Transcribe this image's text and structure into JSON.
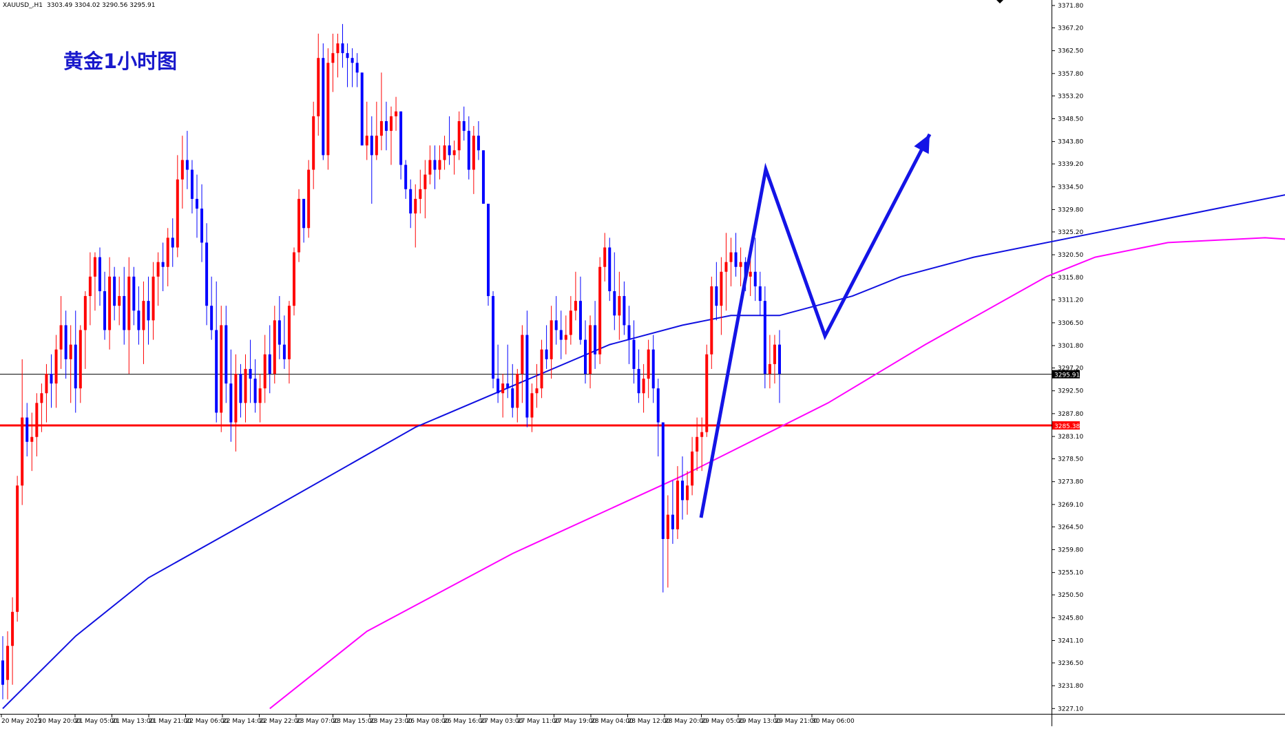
{
  "header": {
    "symbol": "XAUUSD_,H1",
    "ohlc": "3303.49 3304.02 3290.56 3295.91"
  },
  "chart_data": {
    "type": "candlestick",
    "title": "黄金1小时图",
    "ylim": [
      3227.0,
      3371.8
    ],
    "y_ticks": [
      "3371.80",
      "3367.20",
      "3362.50",
      "3357.80",
      "3353.20",
      "3348.50",
      "3343.80",
      "3339.20",
      "3334.50",
      "3329.80",
      "3325.20",
      "3320.50",
      "3315.80",
      "3311.20",
      "3306.50",
      "3301.80",
      "3297.20",
      "3292.50",
      "3287.80",
      "3283.10",
      "3278.50",
      "3273.80",
      "3269.10",
      "3264.50",
      "3259.80",
      "3255.10",
      "3250.50",
      "3245.80",
      "3241.10",
      "3236.50",
      "3231.80",
      "3227.10"
    ],
    "x_ticks": [
      "20 May 2025",
      "20 May 20:00",
      "21 May 05:00",
      "21 May 13:00",
      "21 May 21:00",
      "22 May 06:00",
      "22 May 14:00",
      "22 May 22:00",
      "23 May 07:00",
      "23 May 15:00",
      "23 May 23:00",
      "26 May 08:00",
      "26 May 16:00",
      "27 May 03:00",
      "27 May 11:00",
      "27 May 19:00",
      "28 May 04:00",
      "28 May 12:00",
      "28 May 20:00",
      "29 May 05:00",
      "29 May 13:00",
      "29 May 21:00",
      "30 May 06:00"
    ],
    "candles": [
      [
        3237,
        3242,
        3229,
        3232
      ],
      [
        3233,
        3243,
        3229,
        3240
      ],
      [
        3240,
        3250,
        3232,
        3247
      ],
      [
        3247,
        3275,
        3245,
        3273
      ],
      [
        3273,
        3299,
        3269,
        3287
      ],
      [
        3287,
        3290,
        3279,
        3282
      ],
      [
        3282,
        3288,
        3276,
        3283
      ],
      [
        3283,
        3292,
        3279,
        3290
      ],
      [
        3290,
        3294,
        3284,
        3292
      ],
      [
        3292,
        3298,
        3286,
        3296
      ],
      [
        3296,
        3300,
        3289,
        3294
      ],
      [
        3294,
        3304,
        3289,
        3301
      ],
      [
        3301,
        3312,
        3297,
        3306
      ],
      [
        3306,
        3309,
        3295,
        3299
      ],
      [
        3299,
        3306,
        3290,
        3302
      ],
      [
        3302,
        3309,
        3288,
        3293
      ],
      [
        3293,
        3306,
        3290,
        3305
      ],
      [
        3305,
        3313,
        3297,
        3312
      ],
      [
        3312,
        3321,
        3306,
        3316
      ],
      [
        3316,
        3321,
        3309,
        3320
      ],
      [
        3320,
        3322,
        3310,
        3313
      ],
      [
        3313,
        3317,
        3303,
        3305
      ],
      [
        3305,
        3320,
        3301,
        3316
      ],
      [
        3316,
        3318,
        3307,
        3310
      ],
      [
        3310,
        3316,
        3306,
        3312
      ],
      [
        3312,
        3318,
        3302,
        3305
      ],
      [
        3305,
        3320,
        3296,
        3316
      ],
      [
        3316,
        3318,
        3306,
        3309
      ],
      [
        3309,
        3314,
        3302,
        3305
      ],
      [
        3305,
        3315,
        3298,
        3311
      ],
      [
        3311,
        3316,
        3302,
        3307
      ],
      [
        3307,
        3319,
        3303,
        3316
      ],
      [
        3316,
        3321,
        3310,
        3319
      ],
      [
        3319,
        3323,
        3313,
        3318
      ],
      [
        3318,
        3326,
        3314,
        3324
      ],
      [
        3324,
        3328,
        3318,
        3322
      ],
      [
        3322,
        3341,
        3320,
        3336
      ],
      [
        3336,
        3345,
        3330,
        3340
      ],
      [
        3340,
        3346,
        3334,
        3338
      ],
      [
        3338,
        3340,
        3329,
        3332
      ],
      [
        3332,
        3337,
        3324,
        3330
      ],
      [
        3330,
        3335,
        3319,
        3323
      ],
      [
        3323,
        3327,
        3306,
        3310
      ],
      [
        3310,
        3316,
        3303,
        3305
      ],
      [
        3305,
        3315,
        3286,
        3288
      ],
      [
        3288,
        3310,
        3284,
        3306
      ],
      [
        3306,
        3310,
        3290,
        3294
      ],
      [
        3294,
        3301,
        3282,
        3286
      ],
      [
        3286,
        3300,
        3280,
        3296
      ],
      [
        3296,
        3298,
        3287,
        3290
      ],
      [
        3290,
        3300,
        3286,
        3297
      ],
      [
        3297,
        3303,
        3290,
        3295
      ],
      [
        3295,
        3299,
        3288,
        3290
      ],
      [
        3290,
        3296,
        3286,
        3293
      ],
      [
        3293,
        3304,
        3290,
        3300
      ],
      [
        3300,
        3306,
        3292,
        3296
      ],
      [
        3296,
        3310,
        3294,
        3307
      ],
      [
        3307,
        3312,
        3299,
        3302
      ],
      [
        3302,
        3308,
        3297,
        3299
      ],
      [
        3299,
        3311,
        3294,
        3310
      ],
      [
        3310,
        3322,
        3308,
        3321
      ],
      [
        3321,
        3334,
        3319,
        3332
      ],
      [
        3332,
        3332,
        3323,
        3326
      ],
      [
        3326,
        3340,
        3324,
        3338
      ],
      [
        3338,
        3352,
        3334,
        3349
      ],
      [
        3349,
        3366,
        3345,
        3361
      ],
      [
        3361,
        3364,
        3340,
        3341
      ],
      [
        3341,
        3363,
        3338,
        3360
      ],
      [
        3360,
        3366,
        3354,
        3362
      ],
      [
        3362,
        3366,
        3357,
        3364
      ],
      [
        3364,
        3368,
        3359,
        3362
      ],
      [
        3362,
        3364,
        3355,
        3361
      ],
      [
        3361,
        3363,
        3355,
        3360
      ],
      [
        3360,
        3362,
        3355,
        3358
      ],
      [
        3358,
        3358,
        3343,
        3343
      ],
      [
        3343,
        3352,
        3340,
        3345
      ],
      [
        3345,
        3349,
        3331,
        3341
      ],
      [
        3341,
        3352,
        3340,
        3345
      ],
      [
        3345,
        3358,
        3342,
        3348
      ],
      [
        3348,
        3352,
        3342,
        3346
      ],
      [
        3346,
        3351,
        3339,
        3349
      ],
      [
        3349,
        3353,
        3346,
        3350
      ],
      [
        3350,
        3350,
        3336,
        3339
      ],
      [
        3339,
        3340,
        3332,
        3334
      ],
      [
        3334,
        3336,
        3326,
        3329
      ],
      [
        3329,
        3335,
        3322,
        3332
      ],
      [
        3332,
        3338,
        3329,
        3334
      ],
      [
        3334,
        3340,
        3328,
        3337
      ],
      [
        3337,
        3343,
        3335,
        3340
      ],
      [
        3340,
        3343,
        3334,
        3338
      ],
      [
        3338,
        3343,
        3336,
        3340
      ],
      [
        3340,
        3345,
        3338,
        3343
      ],
      [
        3343,
        3349,
        3339,
        3341
      ],
      [
        3341,
        3344,
        3337,
        3342
      ],
      [
        3342,
        3350,
        3340,
        3348
      ],
      [
        3348,
        3351,
        3344,
        3346
      ],
      [
        3346,
        3349,
        3336,
        3338
      ],
      [
        3338,
        3347,
        3333,
        3345
      ],
      [
        3345,
        3348,
        3340,
        3342
      ],
      [
        3342,
        3342,
        3331,
        3331
      ],
      [
        3331,
        3331,
        3310,
        3312
      ],
      [
        3312,
        3313,
        3293,
        3295
      ],
      [
        3295,
        3302,
        3290,
        3292
      ],
      [
        3292,
        3296,
        3287,
        3294
      ],
      [
        3294,
        3302,
        3291,
        3293
      ],
      [
        3293,
        3298,
        3287,
        3289
      ],
      [
        3289,
        3297,
        3286,
        3296
      ],
      [
        3296,
        3306,
        3290,
        3304
      ],
      [
        3304,
        3309,
        3285,
        3287
      ],
      [
        3287,
        3294,
        3284,
        3292
      ],
      [
        3292,
        3298,
        3289,
        3293
      ],
      [
        3293,
        3303,
        3291,
        3301
      ],
      [
        3301,
        3306,
        3297,
        3299
      ],
      [
        3299,
        3310,
        3295,
        3307
      ],
      [
        3307,
        3312,
        3302,
        3305
      ],
      [
        3305,
        3309,
        3299,
        3303
      ],
      [
        3303,
        3308,
        3300,
        3304
      ],
      [
        3304,
        3312,
        3302,
        3309
      ],
      [
        3309,
        3317,
        3307,
        3311
      ],
      [
        3311,
        3316,
        3302,
        3303
      ],
      [
        3303,
        3307,
        3294,
        3296
      ],
      [
        3296,
        3308,
        3293,
        3306
      ],
      [
        3306,
        3311,
        3297,
        3300
      ],
      [
        3300,
        3320,
        3298,
        3318
      ],
      [
        3318,
        3325,
        3315,
        3322
      ],
      [
        3322,
        3324,
        3311,
        3313
      ],
      [
        3313,
        3321,
        3305,
        3308
      ],
      [
        3308,
        3317,
        3303,
        3312
      ],
      [
        3312,
        3315,
        3304,
        3306
      ],
      [
        3306,
        3310,
        3298,
        3303
      ],
      [
        3303,
        3307,
        3294,
        3297
      ],
      [
        3297,
        3301,
        3290,
        3292
      ],
      [
        3292,
        3298,
        3288,
        3295
      ],
      [
        3295,
        3303,
        3291,
        3301
      ],
      [
        3301,
        3304,
        3290,
        3293
      ],
      [
        3293,
        3295,
        3279,
        3286
      ],
      [
        3286,
        3286,
        3251,
        3262
      ],
      [
        3262,
        3271,
        3252,
        3267
      ],
      [
        3267,
        3274,
        3261,
        3264
      ],
      [
        3264,
        3277,
        3262,
        3274
      ],
      [
        3274,
        3279,
        3266,
        3270
      ],
      [
        3270,
        3276,
        3267,
        3273
      ],
      [
        3273,
        3283,
        3271,
        3280
      ],
      [
        3280,
        3287,
        3276,
        3283
      ],
      [
        3283,
        3287,
        3276,
        3284
      ],
      [
        3284,
        3302,
        3283,
        3300
      ],
      [
        3300,
        3316,
        3297,
        3314
      ],
      [
        3314,
        3319,
        3307,
        3310
      ],
      [
        3310,
        3320,
        3304,
        3317
      ],
      [
        3317,
        3325,
        3309,
        3319
      ],
      [
        3319,
        3324,
        3314,
        3321
      ],
      [
        3321,
        3325,
        3316,
        3318
      ],
      [
        3318,
        3322,
        3314,
        3319
      ],
      [
        3319,
        3320,
        3313,
        3316
      ],
      [
        3316,
        3321,
        3312,
        3317
      ],
      [
        3317,
        3324,
        3311,
        3314
      ],
      [
        3314,
        3317,
        3308,
        3311
      ],
      [
        3311,
        3314,
        3293,
        3296
      ],
      [
        3296,
        3304,
        3293,
        3298
      ],
      [
        3298,
        3304,
        3294,
        3302
      ],
      [
        3302,
        3305,
        3290,
        3296
      ]
    ],
    "ma_blue": [
      [
        0,
        3227.1
      ],
      [
        15,
        3242
      ],
      [
        30,
        3254
      ],
      [
        55,
        3268
      ],
      [
        85,
        3285
      ],
      [
        125,
        3302
      ],
      [
        140,
        3306
      ],
      [
        150,
        3308
      ],
      [
        160,
        3308
      ],
      [
        175,
        3312
      ],
      [
        185,
        3316
      ],
      [
        200,
        3320
      ],
      [
        230,
        3326
      ],
      [
        270,
        3334
      ],
      [
        300,
        3339
      ],
      [
        315,
        3338
      ],
      [
        340,
        3330
      ],
      [
        370,
        3322
      ],
      [
        400,
        3314
      ],
      [
        420,
        3306
      ],
      [
        440,
        3298
      ],
      [
        465,
        3296
      ],
      [
        480,
        3299
      ],
      [
        500,
        3300
      ],
      [
        540,
        3299
      ]
    ],
    "ma_magenta": [
      [
        55,
        3227.1
      ],
      [
        75,
        3243
      ],
      [
        105,
        3259
      ],
      [
        140,
        3275
      ],
      [
        170,
        3290
      ],
      [
        190,
        3302
      ],
      [
        215,
        3316
      ],
      [
        225,
        3320
      ],
      [
        240,
        3323
      ],
      [
        260,
        3324
      ],
      [
        290,
        3322
      ],
      [
        340,
        3321
      ],
      [
        380,
        3318
      ],
      [
        420,
        3317
      ],
      [
        460,
        3316
      ],
      [
        510,
        3312
      ]
    ],
    "hlines": [
      {
        "label": "3295.91",
        "value": 3295.91,
        "color": "#000000"
      },
      {
        "label": "3285.38",
        "value": 3285.38,
        "color": "#ff0000"
      }
    ],
    "arrow_path": [
      [
        1018,
        752
      ],
      [
        1112,
        246
      ],
      [
        1198,
        488
      ],
      [
        1350,
        195
      ]
    ],
    "colors": {
      "bull": "#ff0000",
      "bear": "#0000ff",
      "ma_fast": "#1010e0",
      "ma_slow": "#ff00ff",
      "arrow": "#1414e6",
      "title": "#1a1acc"
    }
  }
}
